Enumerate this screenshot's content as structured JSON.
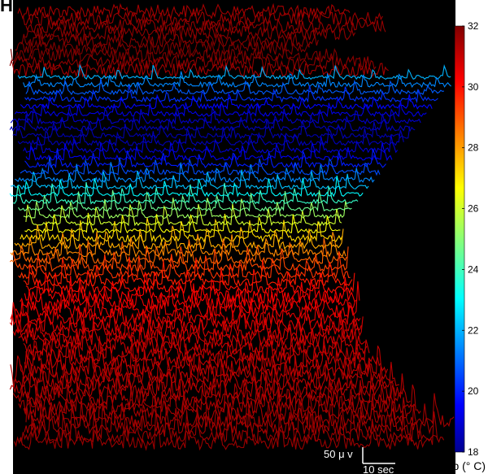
{
  "panel_label": "H",
  "chart_data": {
    "type": "line",
    "title": "",
    "xlabel": "",
    "ylabel": "",
    "background": "#000000",
    "n_traces": 60,
    "colormap": "jet",
    "colorbar": {
      "label": "Temp (° C)",
      "min": 18,
      "max": 32,
      "ticks": [
        18,
        20,
        22,
        24,
        26,
        28,
        30,
        32
      ]
    },
    "scale_bar": {
      "amplitude_label": "50 μ v",
      "time_label": "10 sec"
    },
    "traces_temp_top_to_bottom": [
      31.5,
      31.6,
      31.7,
      31.8,
      31.9,
      32.0,
      32.0,
      31.8,
      31.5,
      22.0,
      21.4,
      20.8,
      20.2,
      19.6,
      19.2,
      18.8,
      18.6,
      18.5,
      18.6,
      18.9,
      19.3,
      19.9,
      20.6,
      21.4,
      22.2,
      23.0,
      23.8,
      24.6,
      25.3,
      26.0,
      26.6,
      27.2,
      27.8,
      28.3,
      28.8,
      29.2,
      29.5,
      29.8,
      30.0,
      30.2,
      30.4,
      30.5,
      30.6,
      30.7,
      30.8,
      30.9,
      31.0,
      31.0,
      31.1,
      31.1,
      31.2,
      31.2,
      31.3,
      31.3,
      31.4,
      31.4,
      31.5,
      31.5,
      31.6,
      31.6
    ]
  }
}
